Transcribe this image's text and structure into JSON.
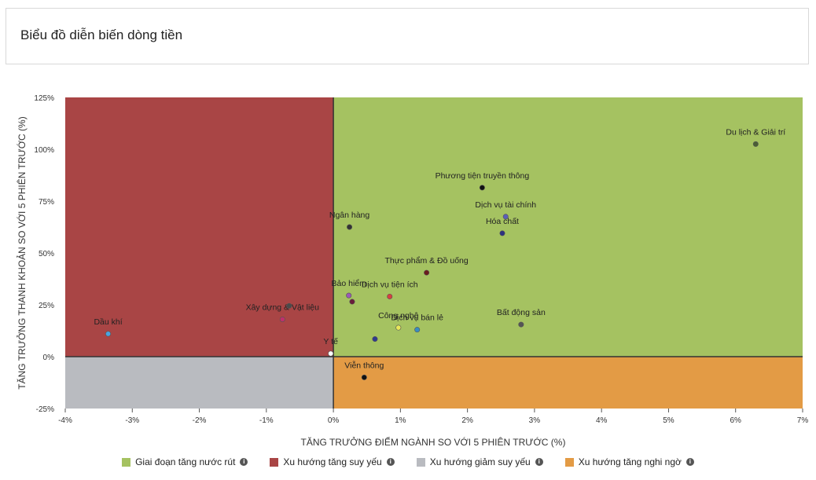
{
  "page_title": "Biểu đồ diễn biến dòng tiền",
  "chart_data": {
    "type": "scatter",
    "xlabel": "TĂNG TRƯỞNG ĐIỂM NGÀNH SO VỚI 5 PHIÊN TRƯỚC (%)",
    "ylabel": "TĂNG TRƯỞNG THANH KHOẢN SO VỚI 5 PHIÊN TRƯỚC (%)",
    "xlim": [
      -4,
      7
    ],
    "ylim": [
      -25,
      125
    ],
    "x_ticks": [
      -4,
      -3,
      -2,
      -1,
      0,
      1,
      2,
      3,
      4,
      5,
      6,
      7
    ],
    "y_ticks": [
      -25,
      0,
      25,
      50,
      75,
      100,
      125
    ],
    "x_tick_labels": [
      "-4%",
      "-3%",
      "-2%",
      "-1%",
      "0%",
      "1%",
      "2%",
      "3%",
      "4%",
      "5%",
      "6%",
      "7%"
    ],
    "y_tick_labels": [
      "-25%",
      "0%",
      "25%",
      "50%",
      "75%",
      "100%",
      "125%"
    ],
    "quadrants": [
      {
        "name": "Giai đoạn tăng nước rút",
        "color": "#a5c261",
        "x_range": [
          0,
          7
        ],
        "y_range": [
          0,
          125
        ]
      },
      {
        "name": "Xu hướng tăng suy yếu",
        "color": "#a94545",
        "x_range": [
          -4,
          0
        ],
        "y_range": [
          0,
          125
        ]
      },
      {
        "name": "Xu hướng giảm suy yếu",
        "color": "#b9bbc0",
        "x_range": [
          -4,
          0
        ],
        "y_range": [
          -25,
          0
        ]
      },
      {
        "name": "Xu hướng tăng nghi ngờ",
        "color": "#e39b45",
        "x_range": [
          0,
          7
        ],
        "y_range": [
          -25,
          0
        ]
      }
    ],
    "points": [
      {
        "name": "Du lịch & Giải trí",
        "x": 6.3,
        "y": 102.5,
        "color": "#4a5e35"
      },
      {
        "name": "Phương tiện truyền thông",
        "x": 2.22,
        "y": 81.5,
        "color": "#111111"
      },
      {
        "name": "Dịch vụ tài chính",
        "x": 2.57,
        "y": 67.5,
        "color": "#5b5fb8"
      },
      {
        "name": "Hóa chất",
        "x": 2.52,
        "y": 59.5,
        "color": "#2d3180"
      },
      {
        "name": "Ngân hàng",
        "x": 0.24,
        "y": 62.5,
        "color": "#333333"
      },
      {
        "name": "Thực phẩm & Đồ uống",
        "x": 1.39,
        "y": 40.5,
        "color": "#6a1d1d"
      },
      {
        "name": "Dịch vụ tiện ích",
        "x": 0.84,
        "y": 29,
        "color": "#d64040"
      },
      {
        "name": "Bảo hiểm",
        "x": 0.23,
        "y": 29.5,
        "color": "#9b59b6"
      },
      {
        "name": "Xây dựng & Vật liệu",
        "x": -0.76,
        "y": 18,
        "color": "#c0306a"
      },
      {
        "name": "Dầu khí",
        "x": -3.36,
        "y": 11,
        "color": "#4aa3df"
      },
      {
        "name": "Bất động sản",
        "x": 2.8,
        "y": 15.5,
        "color": "#555555"
      },
      {
        "name": "Dịch vụ bán lẻ",
        "x": 1.25,
        "y": 13,
        "color": "#3a8dc0"
      },
      {
        "name": "Công nghệ",
        "x": 0.97,
        "y": 14,
        "color": "#e8e85a"
      },
      {
        "name": "Y tế",
        "x": -0.04,
        "y": 1.5,
        "color": "#ffffff"
      },
      {
        "name": "Viễn thông",
        "x": 0.46,
        "y": -10,
        "color": "#111111"
      },
      {
        "name": "",
        "x": 0.28,
        "y": 26.5,
        "color": "#6a1d3a"
      },
      {
        "name": "",
        "x": 0.62,
        "y": 8.5,
        "color": "#2f3a8f"
      },
      {
        "name": "",
        "x": -0.66,
        "y": 24.5,
        "color": "#4a4a4a"
      }
    ],
    "legend_placement": "bottom",
    "grid": false
  },
  "legend": [
    {
      "label": "Giai đoạn tăng nước rút",
      "color": "#a5c261",
      "icon": "info-icon"
    },
    {
      "label": "Xu hướng tăng suy yếu",
      "color": "#a94545",
      "icon": "info-icon"
    },
    {
      "label": "Xu hướng giảm suy yếu",
      "color": "#b9bbc0",
      "icon": "info-icon"
    },
    {
      "label": "Xu hướng tăng nghi ngờ",
      "color": "#e39b45",
      "icon": "info-icon"
    }
  ]
}
